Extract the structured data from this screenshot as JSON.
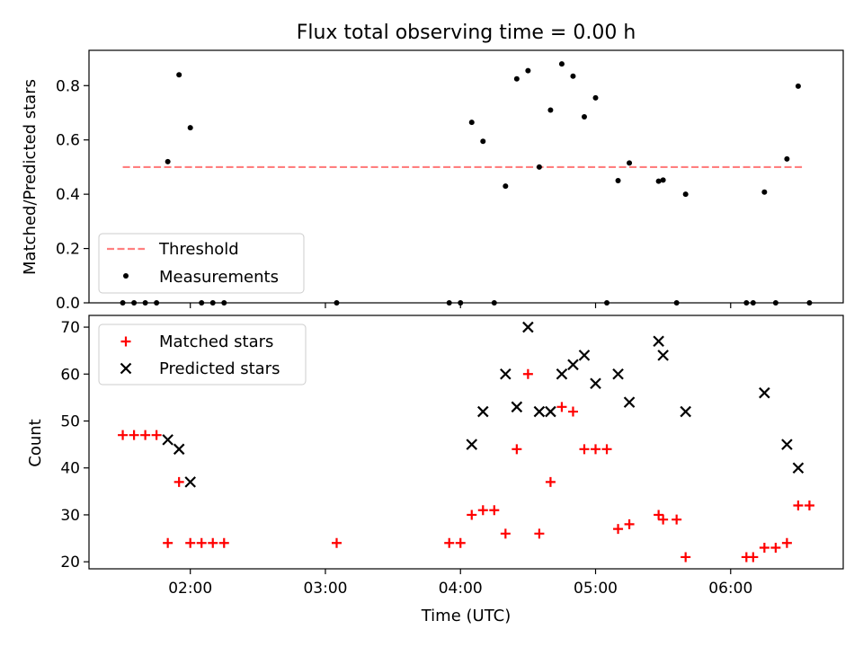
{
  "chart_data": [
    {
      "type": "scatter",
      "title": "Flux total observing time = 0.00 h",
      "xlabel": "",
      "ylabel": "Matched/Predicted stars",
      "xlim": [
        "01:15",
        "06:50"
      ],
      "ylim": [
        0,
        0.93
      ],
      "yticks": [
        "0.0",
        "0.2",
        "0.4",
        "0.6",
        "0.8"
      ],
      "legend": {
        "placement": "lower-left",
        "entries": [
          "Threshold",
          "Measurements"
        ]
      },
      "threshold": {
        "name": "Threshold",
        "value": 0.5,
        "x_start": "01:30",
        "x_end": "06:33",
        "color": "#ff7f7f",
        "style": "dashed"
      },
      "series": [
        {
          "name": "Measurements",
          "color": "#000000",
          "marker": "dot",
          "points": [
            [
              "01:30",
              0.0
            ],
            [
              "01:35",
              0.0
            ],
            [
              "01:40",
              0.0
            ],
            [
              "01:45",
              0.0
            ],
            [
              "01:50",
              0.52
            ],
            [
              "01:55",
              0.84
            ],
            [
              "02:00",
              0.645
            ],
            [
              "02:05",
              0.0
            ],
            [
              "02:10",
              0.0
            ],
            [
              "02:15",
              0.0
            ],
            [
              "03:05",
              0.0
            ],
            [
              "03:55",
              0.0
            ],
            [
              "04:00",
              0.0
            ],
            [
              "04:05",
              0.665
            ],
            [
              "04:10",
              0.595
            ],
            [
              "04:15",
              0.0
            ],
            [
              "04:20",
              0.43
            ],
            [
              "04:25",
              0.825
            ],
            [
              "04:30",
              0.855
            ],
            [
              "04:35",
              0.5
            ],
            [
              "04:40",
              0.71
            ],
            [
              "04:45",
              0.88
            ],
            [
              "04:50",
              0.835
            ],
            [
              "04:55",
              0.685
            ],
            [
              "05:00",
              0.755
            ],
            [
              "05:05",
              0.0
            ],
            [
              "05:10",
              0.45
            ],
            [
              "05:15",
              0.515
            ],
            [
              "05:28",
              0.448
            ],
            [
              "05:30",
              0.452
            ],
            [
              "05:36",
              0.0
            ],
            [
              "05:40",
              0.4
            ],
            [
              "06:07",
              0.0
            ],
            [
              "06:10",
              0.0
            ],
            [
              "06:15",
              0.408
            ],
            [
              "06:20",
              0.0
            ],
            [
              "06:25",
              0.53
            ],
            [
              "06:30",
              0.798
            ],
            [
              "06:35",
              0.0
            ]
          ]
        }
      ]
    },
    {
      "type": "scatter",
      "title": "",
      "xlabel": "Time (UTC)",
      "ylabel": "Count",
      "xlim": [
        "01:15",
        "06:50"
      ],
      "ylim": [
        18.5,
        72.5
      ],
      "xticks": [
        "02:00",
        "03:00",
        "04:00",
        "05:00",
        "06:00"
      ],
      "yticks": [
        "20",
        "30",
        "40",
        "50",
        "60",
        "70"
      ],
      "legend": {
        "placement": "upper-left",
        "entries": [
          "Matched stars",
          "Predicted stars"
        ]
      },
      "series": [
        {
          "name": "Matched stars",
          "color": "#ff0000",
          "marker": "plus",
          "points": [
            [
              "01:30",
              47
            ],
            [
              "01:35",
              47
            ],
            [
              "01:40",
              47
            ],
            [
              "01:45",
              47
            ],
            [
              "01:50",
              24
            ],
            [
              "01:55",
              37
            ],
            [
              "02:00",
              24
            ],
            [
              "02:05",
              24
            ],
            [
              "02:10",
              24
            ],
            [
              "02:15",
              24
            ],
            [
              "03:05",
              24
            ],
            [
              "03:55",
              24
            ],
            [
              "04:00",
              24
            ],
            [
              "04:05",
              30
            ],
            [
              "04:10",
              31
            ],
            [
              "04:15",
              31
            ],
            [
              "04:20",
              26
            ],
            [
              "04:25",
              44
            ],
            [
              "04:30",
              60
            ],
            [
              "04:35",
              26
            ],
            [
              "04:40",
              37
            ],
            [
              "04:45",
              53
            ],
            [
              "04:50",
              52
            ],
            [
              "04:55",
              44
            ],
            [
              "05:00",
              44
            ],
            [
              "05:05",
              44
            ],
            [
              "05:10",
              27
            ],
            [
              "05:15",
              28
            ],
            [
              "05:28",
              30
            ],
            [
              "05:30",
              29
            ],
            [
              "05:36",
              29
            ],
            [
              "05:40",
              21
            ],
            [
              "06:07",
              21
            ],
            [
              "06:10",
              21
            ],
            [
              "06:15",
              23
            ],
            [
              "06:20",
              23
            ],
            [
              "06:25",
              24
            ],
            [
              "06:30",
              32
            ],
            [
              "06:35",
              32
            ]
          ]
        },
        {
          "name": "Predicted stars",
          "color": "#000000",
          "marker": "x",
          "points": [
            [
              "01:50",
              46
            ],
            [
              "01:55",
              44
            ],
            [
              "02:00",
              37
            ],
            [
              "04:05",
              45
            ],
            [
              "04:10",
              52
            ],
            [
              "04:20",
              60
            ],
            [
              "04:25",
              53
            ],
            [
              "04:30",
              70
            ],
            [
              "04:35",
              52
            ],
            [
              "04:40",
              52
            ],
            [
              "04:45",
              60
            ],
            [
              "04:50",
              62
            ],
            [
              "04:55",
              64
            ],
            [
              "05:00",
              58
            ],
            [
              "05:10",
              60
            ],
            [
              "05:15",
              54
            ],
            [
              "05:28",
              67
            ],
            [
              "05:30",
              64
            ],
            [
              "05:40",
              52
            ],
            [
              "06:15",
              56
            ],
            [
              "06:25",
              45
            ],
            [
              "06:30",
              40
            ]
          ]
        }
      ]
    }
  ]
}
